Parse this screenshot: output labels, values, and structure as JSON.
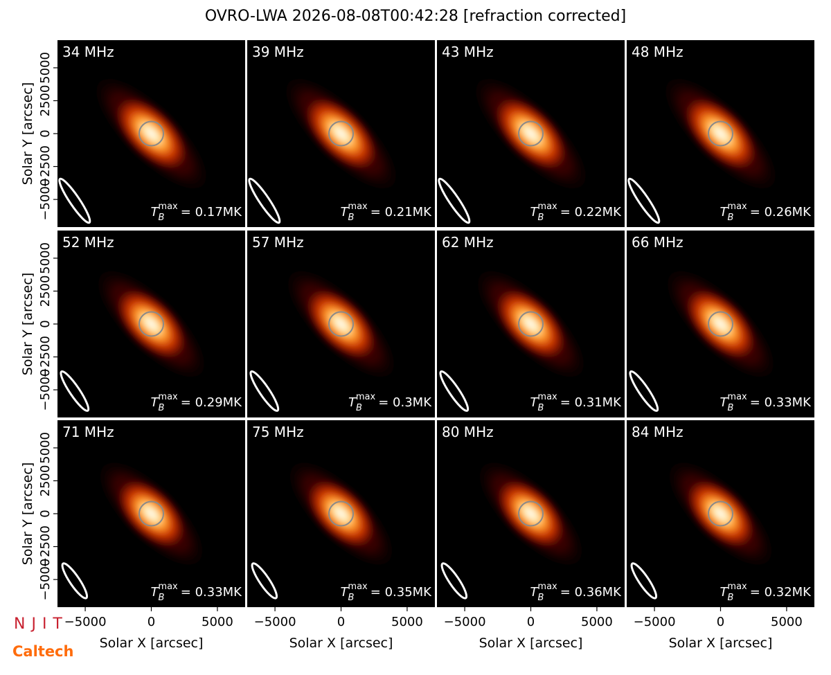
{
  "chart_data": {
    "type": "image-grid",
    "title": "OVRO-LWA 2026-08-08T00:42:28 [refraction corrected]",
    "xlabel": "Solar X [arcsec]",
    "ylabel": "Solar Y [arcsec]",
    "xlim": [
      -7100,
      7100
    ],
    "ylim": [
      -7100,
      7100
    ],
    "xticks": [
      {
        "value": -5000,
        "label": "−5000"
      },
      0,
      5000
    ],
    "yticks": [
      {
        "value": -5000,
        "label": "−5000"
      },
      {
        "value": -2500,
        "label": "−2500"
      },
      0,
      2500,
      5000
    ],
    "tb_symbol": "T",
    "tb_sub": "B",
    "tb_sup": "max",
    "tb_relation": "=",
    "panels": [
      {
        "label": "34 MHz",
        "tb_max": "0.17MK"
      },
      {
        "label": "39 MHz",
        "tb_max": "0.21MK"
      },
      {
        "label": "43 MHz",
        "tb_max": "0.22MK"
      },
      {
        "label": "48 MHz",
        "tb_max": "0.26MK"
      },
      {
        "label": "52 MHz",
        "tb_max": "0.29MK"
      },
      {
        "label": "57 MHz",
        "tb_max": "0.3MK"
      },
      {
        "label": "62 MHz",
        "tb_max": "0.31MK"
      },
      {
        "label": "66 MHz",
        "tb_max": "0.33MK"
      },
      {
        "label": "71 MHz",
        "tb_max": "0.33MK"
      },
      {
        "label": "75 MHz",
        "tb_max": "0.35MK"
      },
      {
        "label": "80 MHz",
        "tb_max": "0.36MK"
      },
      {
        "label": "84 MHz",
        "tb_max": "0.32MK"
      }
    ]
  },
  "logos": {
    "njit": "NJIT",
    "caltech": "Caltech"
  }
}
